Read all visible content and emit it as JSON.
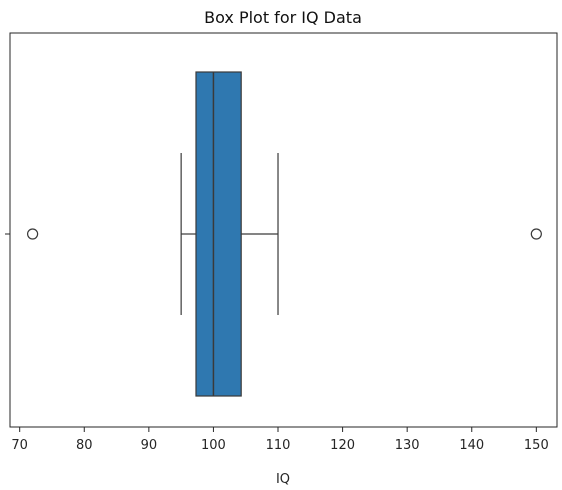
{
  "chart_data": {
    "type": "box",
    "title": "Box Plot for IQ Data",
    "xlabel": "IQ",
    "ylabel": "",
    "xlim": [
      68.5,
      153.2
    ],
    "xticks": [
      70,
      80,
      90,
      100,
      110,
      120,
      130,
      140,
      150
    ],
    "orientation": "horizontal",
    "grid": false,
    "box": {
      "whisker_low": 95,
      "q1": 97.3,
      "median": 100,
      "q3": 104.3,
      "whisker_high": 110
    },
    "outliers": [
      72,
      150
    ],
    "colors": {
      "box_fill": "#2f78b0",
      "line": "#3a3a3a",
      "axis": "#262626"
    }
  }
}
